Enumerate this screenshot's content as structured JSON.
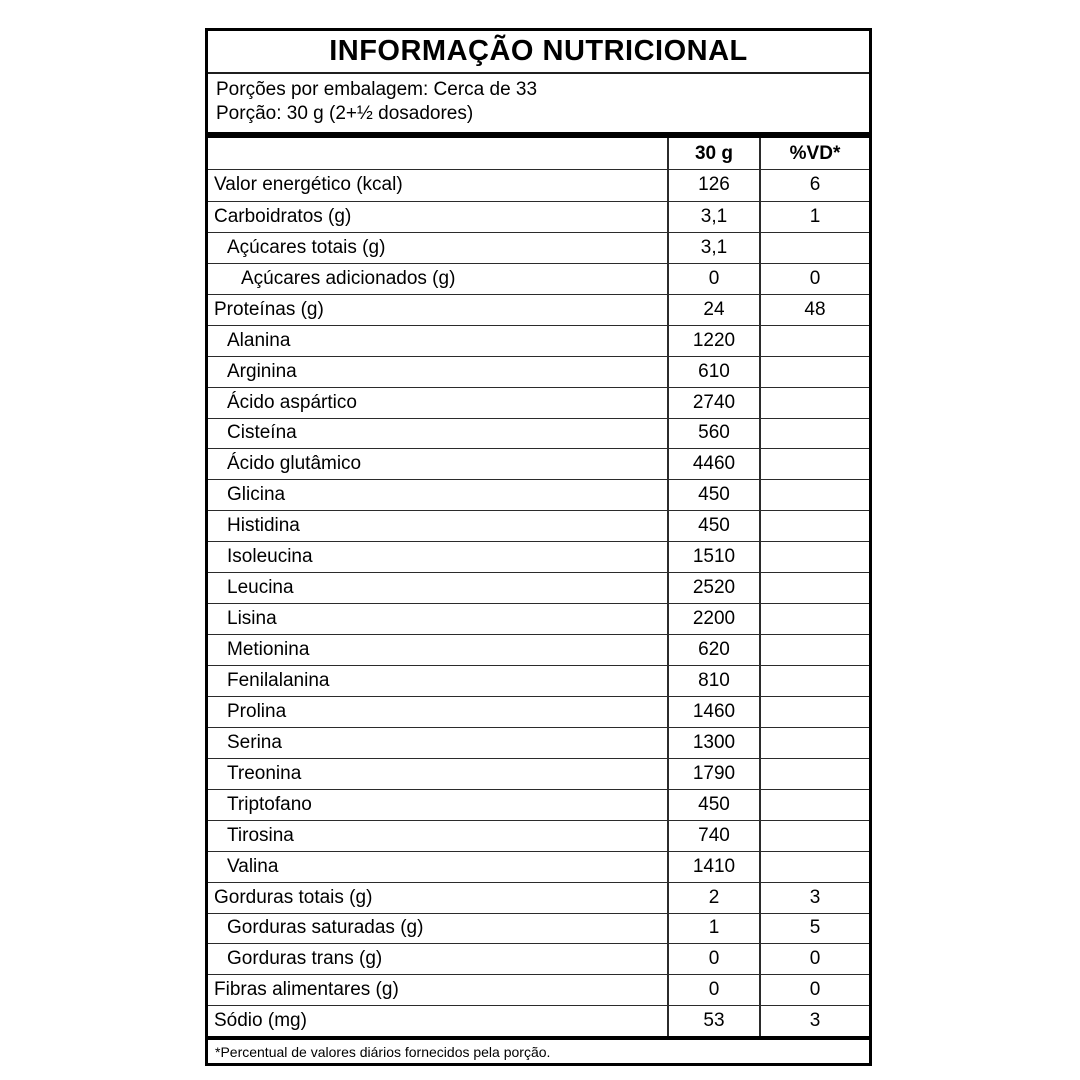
{
  "label": {
    "title": "INFORMAÇÃO NUTRICIONAL",
    "servings_line": "Porções por embalagem: Cerca de 33",
    "portion_line": "Porção: 30 g (2+½ dosadores)",
    "columns": {
      "nutrient": "",
      "amount": "30 g",
      "vd": "%VD*"
    },
    "rows": [
      {
        "label": "Valor energético (kcal)",
        "indent": 0,
        "amount": "126",
        "vd": "6"
      },
      {
        "label": "Carboidratos (g)",
        "indent": 0,
        "amount": "3,1",
        "vd": "1"
      },
      {
        "label": "Açúcares totais (g)",
        "indent": 1,
        "amount": "3,1",
        "vd": ""
      },
      {
        "label": "Açúcares adicionados (g)",
        "indent": 2,
        "amount": "0",
        "vd": "0"
      },
      {
        "label": "Proteínas (g)",
        "indent": 0,
        "amount": "24",
        "vd": "48"
      },
      {
        "label": "Alanina",
        "indent": 1,
        "amount": "1220",
        "vd": ""
      },
      {
        "label": "Arginina",
        "indent": 1,
        "amount": "610",
        "vd": ""
      },
      {
        "label": "Ácido aspártico",
        "indent": 1,
        "amount": "2740",
        "vd": ""
      },
      {
        "label": "Cisteína",
        "indent": 1,
        "amount": "560",
        "vd": ""
      },
      {
        "label": "Ácido glutâmico",
        "indent": 1,
        "amount": "4460",
        "vd": ""
      },
      {
        "label": "Glicina",
        "indent": 1,
        "amount": "450",
        "vd": ""
      },
      {
        "label": "Histidina",
        "indent": 1,
        "amount": "450",
        "vd": ""
      },
      {
        "label": "Isoleucina",
        "indent": 1,
        "amount": "1510",
        "vd": ""
      },
      {
        "label": "Leucina",
        "indent": 1,
        "amount": "2520",
        "vd": ""
      },
      {
        "label": "Lisina",
        "indent": 1,
        "amount": "2200",
        "vd": ""
      },
      {
        "label": "Metionina",
        "indent": 1,
        "amount": "620",
        "vd": ""
      },
      {
        "label": "Fenilalanina",
        "indent": 1,
        "amount": "810",
        "vd": ""
      },
      {
        "label": "Prolina",
        "indent": 1,
        "amount": "1460",
        "vd": ""
      },
      {
        "label": "Serina",
        "indent": 1,
        "amount": "1300",
        "vd": ""
      },
      {
        "label": "Treonina",
        "indent": 1,
        "amount": "1790",
        "vd": ""
      },
      {
        "label": "Triptofano",
        "indent": 1,
        "amount": "450",
        "vd": ""
      },
      {
        "label": "Tirosina",
        "indent": 1,
        "amount": "740",
        "vd": ""
      },
      {
        "label": "Valina",
        "indent": 1,
        "amount": "1410",
        "vd": ""
      },
      {
        "label": "Gorduras totais (g)",
        "indent": 0,
        "amount": "2",
        "vd": "3"
      },
      {
        "label": "Gorduras saturadas (g)",
        "indent": 1,
        "amount": "1",
        "vd": "5"
      },
      {
        "label": "Gorduras trans (g)",
        "indent": 1,
        "amount": "0",
        "vd": "0"
      },
      {
        "label": "Fibras alimentares (g)",
        "indent": 0,
        "amount": "0",
        "vd": "0"
      },
      {
        "label": "Sódio (mg)",
        "indent": 0,
        "amount": "53",
        "vd": "3"
      }
    ],
    "footnote": "*Percentual de valores diários fornecidos pela porção.",
    "colors": {
      "background": "#ffffff",
      "text": "#000000",
      "border_thick": "#000000",
      "border_thin": "#2b2b2b"
    }
  }
}
